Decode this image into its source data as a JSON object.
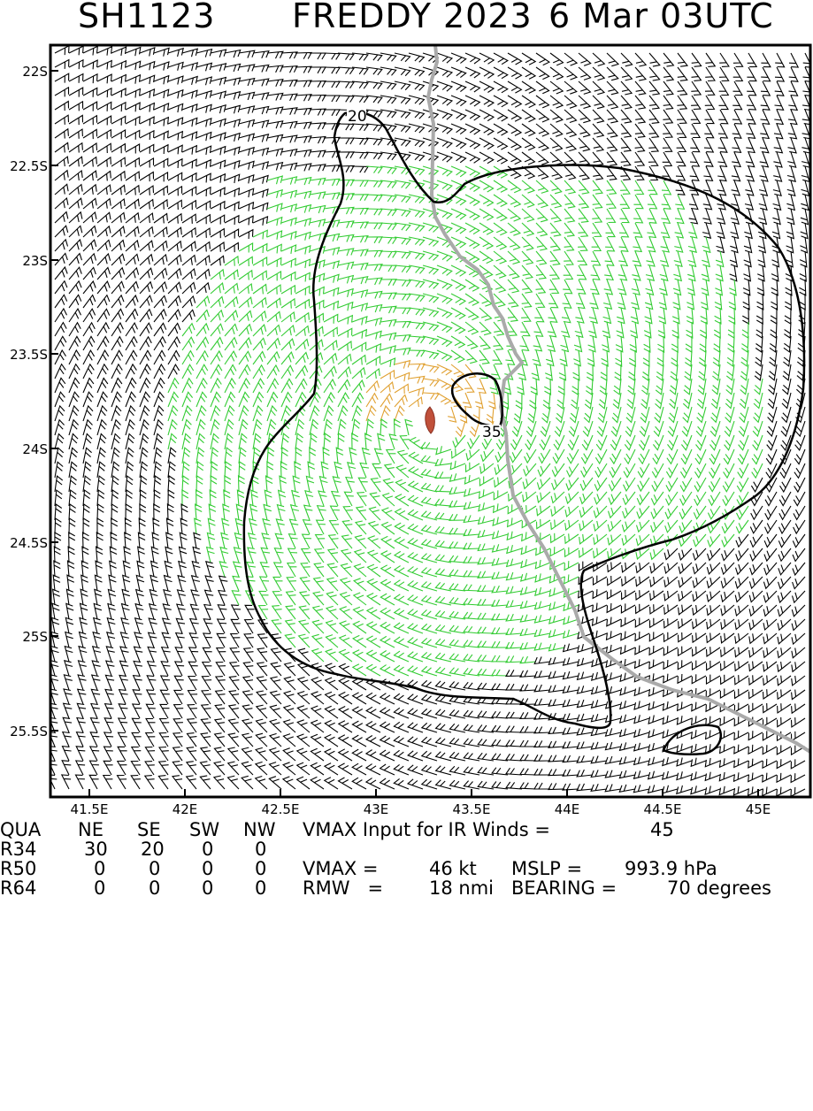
{
  "title": {
    "storm_id": "SH1123",
    "storm_name_year": "FREDDY 2023",
    "datetime": "6 Mar 03UTC"
  },
  "map": {
    "lat_labels": [
      "22S",
      "22.5S",
      "23S",
      "23.5S",
      "24S",
      "24.5S",
      "25S",
      "25.5S"
    ],
    "lon_labels": [
      "41.5E",
      "42E",
      "42.5E",
      "43E",
      "43.5E",
      "44E",
      "44.5E",
      "45E"
    ],
    "contour_labels": [
      "20",
      "35"
    ],
    "colors": {
      "barb_black": "#000000",
      "barb_green": "#33cc33",
      "barb_orange": "#e0a030",
      "coastline": "#aaaaaa",
      "center_marker": "#c0503a"
    },
    "center": {
      "lat": -23.93,
      "lon": 43.29
    }
  },
  "table": {
    "quadrant_row": {
      "label": "QUA",
      "cols": [
        "NE",
        "SE",
        "SW",
        "NW"
      ],
      "text": "VMAX Input for IR Winds =",
      "value": "45"
    },
    "r34_row": {
      "label": "R34",
      "cols": [
        "30",
        "20",
        "0",
        "0"
      ]
    },
    "r50_row": {
      "label": "R50",
      "cols": [
        "0",
        "0",
        "0",
        "0"
      ],
      "vmax_label": "VMAX =",
      "vmax_value": "46 kt",
      "mslp_label": "MSLP =",
      "mslp_value": "993.9 hPa"
    },
    "r64_row": {
      "label": "R64",
      "cols": [
        "0",
        "0",
        "0",
        "0"
      ],
      "rmw_label": "RMW   =",
      "rmw_value": "18 nmi",
      "bearing_label": "BEARING =",
      "bearing_value": "70 degrees"
    }
  }
}
